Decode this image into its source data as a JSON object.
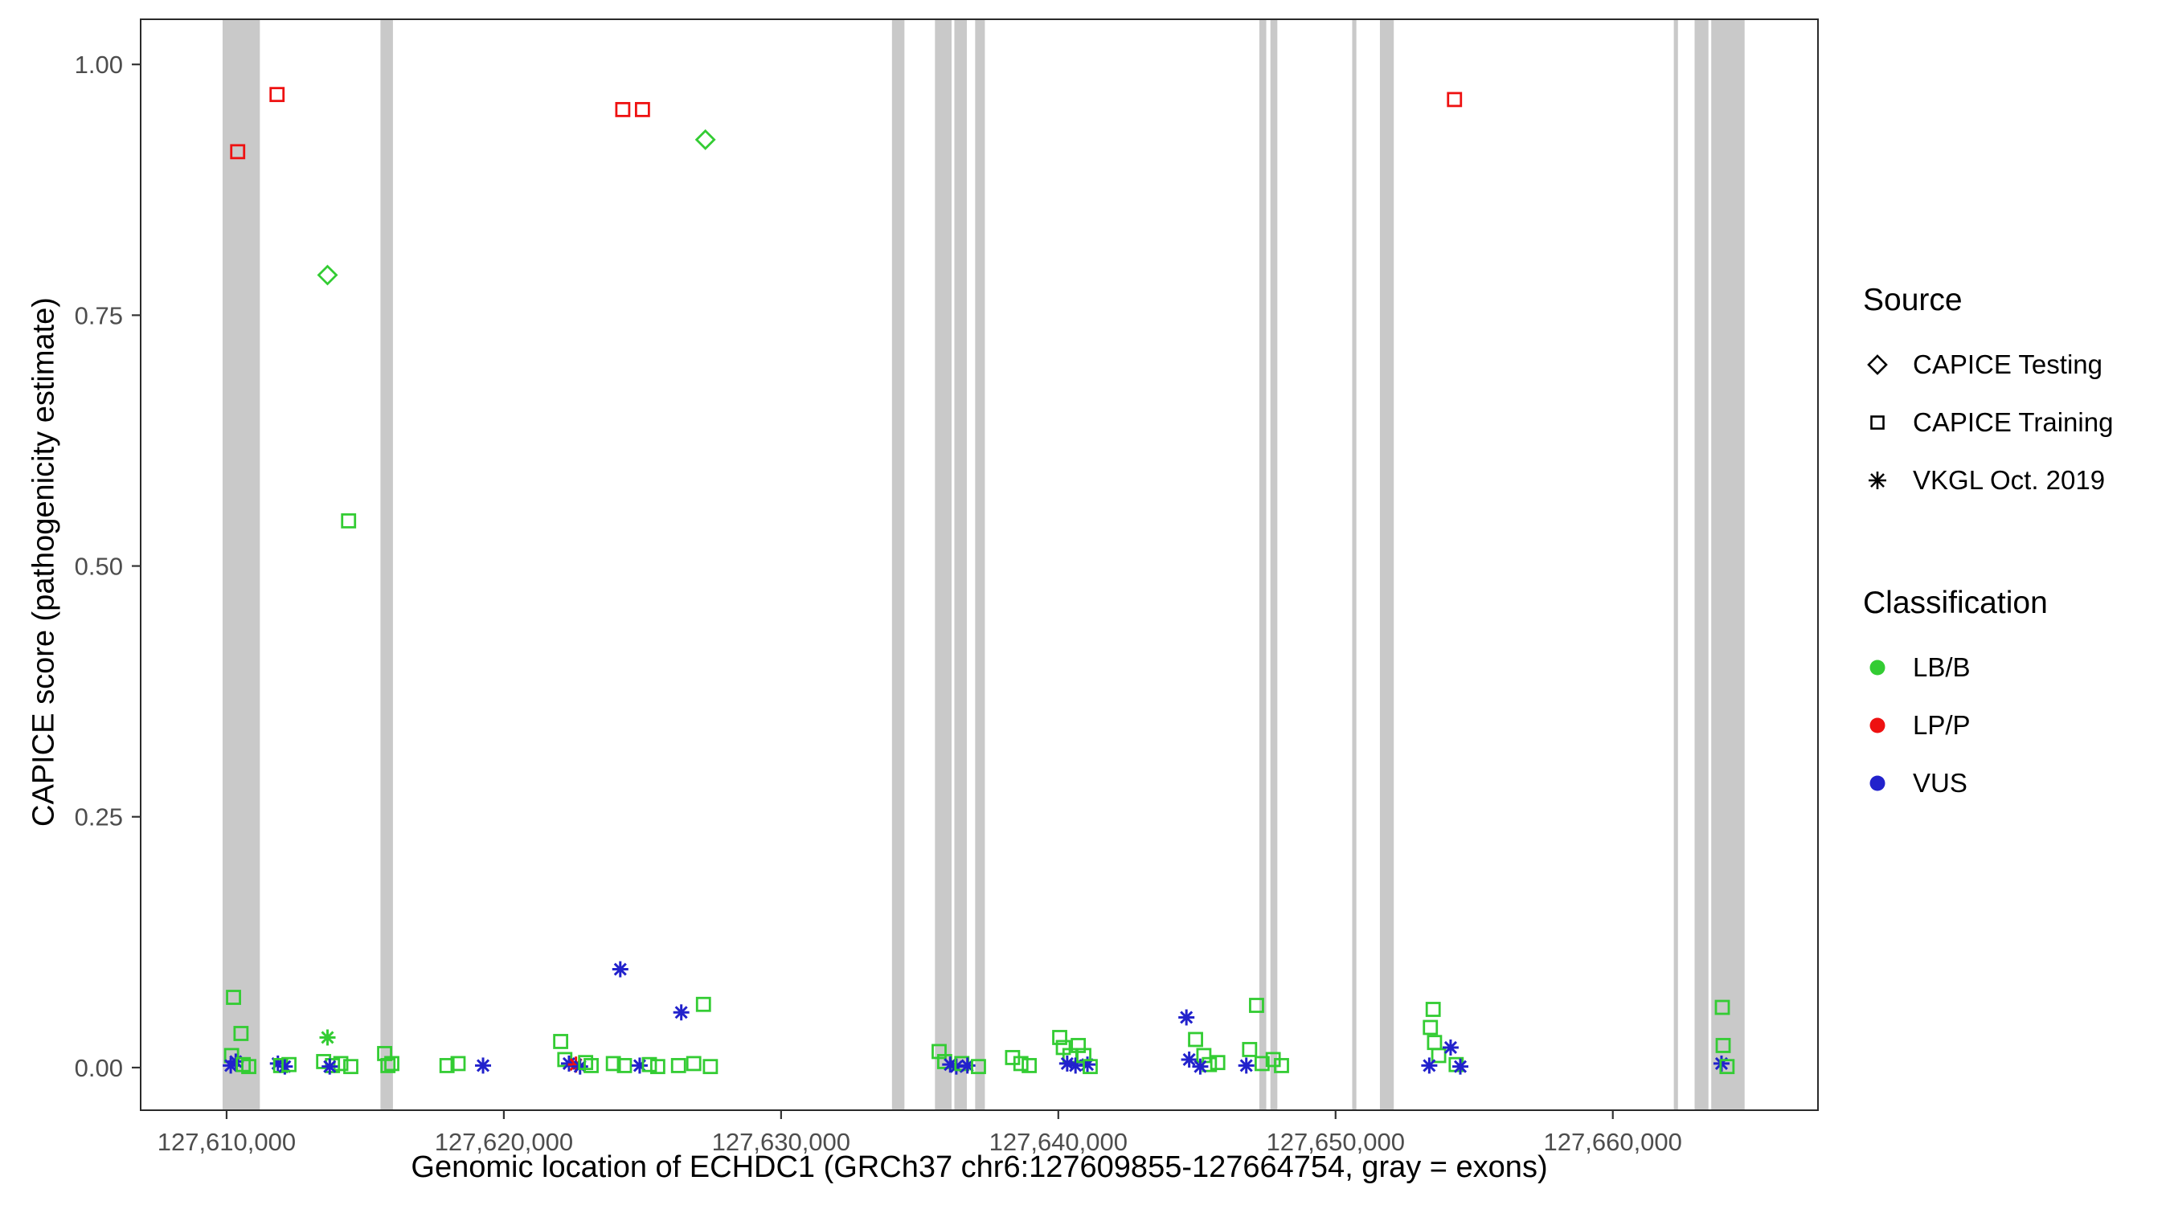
{
  "colors": {
    "LB/B": "#33cc33",
    "LP/P": "#ee1111",
    "VUS": "#2222cc",
    "exon": "#c9c9c9",
    "axis": "#333333"
  },
  "axes": {
    "x_label": "Genomic location of ECHDC1 (GRCh37 chr6:127609855-127664754, gray = exons)",
    "y_label": "CAPICE score (pathogenicity estimate)",
    "x_domain": [
      127606900,
      127667400
    ],
    "y_domain": [
      -0.0425,
      1.045
    ],
    "x_ticks": [
      127610000,
      127620000,
      127630000,
      127640000,
      127650000,
      127660000
    ],
    "x_tick_labels": [
      "127,610,000",
      "127,620,000",
      "127,630,000",
      "127,640,000",
      "127,650,000",
      "127,660,000"
    ],
    "y_ticks": [
      0,
      0.25,
      0.5,
      0.75,
      1
    ],
    "y_tick_labels": [
      "0.00",
      "0.25",
      "0.50",
      "0.75",
      "1.00"
    ]
  },
  "legend": {
    "source_title": "Source",
    "source_items": [
      {
        "label": "CAPICE Testing",
        "shape": "diamond"
      },
      {
        "label": "CAPICE Training",
        "shape": "square"
      },
      {
        "label": "VKGL Oct. 2019",
        "shape": "asterisk"
      }
    ],
    "classification_title": "Classification",
    "classification_items": [
      {
        "label": "LB/B",
        "color": "#33cc33"
      },
      {
        "label": "LP/P",
        "color": "#ee1111"
      },
      {
        "label": "VUS",
        "color": "#2222cc"
      }
    ]
  },
  "chart_data": {
    "type": "scatter",
    "title": "",
    "xlabel": "Genomic location of ECHDC1 (GRCh37 chr6:127609855-127664754, gray = exons)",
    "ylabel": "CAPICE score (pathogenicity estimate)",
    "grid": false,
    "legend_position": "right",
    "exons": [
      [
        127609855,
        127611200
      ],
      [
        127615550,
        127616000
      ],
      [
        127634000,
        127634450
      ],
      [
        127635550,
        127636150
      ],
      [
        127636250,
        127636700
      ],
      [
        127637000,
        127637350
      ],
      [
        127647250,
        127647500
      ],
      [
        127647650,
        127647900
      ],
      [
        127650600,
        127650750
      ],
      [
        127651600,
        127652100
      ],
      [
        127662200,
        127662350
      ],
      [
        127662950,
        127663450
      ],
      [
        127663550,
        127664754
      ]
    ],
    "points": [
      {
        "x": 127610400,
        "y": 0.913,
        "shape": "square",
        "source": "CAPICE Training",
        "class": "LP/P"
      },
      {
        "x": 127611820,
        "y": 0.97,
        "shape": "square",
        "source": "CAPICE Training",
        "class": "LP/P"
      },
      {
        "x": 127624290,
        "y": 0.955,
        "shape": "square",
        "source": "CAPICE Training",
        "class": "LP/P"
      },
      {
        "x": 127625000,
        "y": 0.955,
        "shape": "square",
        "source": "CAPICE Training",
        "class": "LP/P"
      },
      {
        "x": 127654290,
        "y": 0.965,
        "shape": "square",
        "source": "CAPICE Training",
        "class": "LP/P"
      },
      {
        "x": 127627270,
        "y": 0.925,
        "shape": "diamond",
        "source": "CAPICE Testing",
        "class": "LB/B"
      },
      {
        "x": 127613640,
        "y": 0.79,
        "shape": "diamond",
        "source": "CAPICE Testing",
        "class": "LB/B"
      },
      {
        "x": 127614400,
        "y": 0.545,
        "shape": "square",
        "source": "CAPICE Training",
        "class": "LB/B"
      },
      {
        "x": 127610250,
        "y": 0.07,
        "shape": "square",
        "source": "CAPICE Training",
        "class": "LB/B"
      },
      {
        "x": 127610520,
        "y": 0.034,
        "shape": "square",
        "source": "CAPICE Training",
        "class": "LB/B"
      },
      {
        "x": 127610180,
        "y": 0.012,
        "shape": "square",
        "source": "CAPICE Training",
        "class": "LB/B"
      },
      {
        "x": 127610330,
        "y": 0.006,
        "shape": "asterisk",
        "source": "VKGL Oct. 2019",
        "class": "VUS"
      },
      {
        "x": 127610150,
        "y": 0.002,
        "shape": "asterisk",
        "source": "VKGL Oct. 2019",
        "class": "VUS"
      },
      {
        "x": 127610600,
        "y": 0.003,
        "shape": "square",
        "source": "CAPICE Training",
        "class": "LB/B"
      },
      {
        "x": 127610800,
        "y": 0.001,
        "shape": "square",
        "source": "CAPICE Training",
        "class": "LB/B"
      },
      {
        "x": 127611850,
        "y": 0.004,
        "shape": "asterisk",
        "source": "VKGL Oct. 2019",
        "class": "VUS"
      },
      {
        "x": 127611950,
        "y": 0.002,
        "shape": "square",
        "source": "CAPICE Training",
        "class": "LB/B"
      },
      {
        "x": 127612100,
        "y": 0.001,
        "shape": "asterisk",
        "source": "VKGL Oct. 2019",
        "class": "VUS"
      },
      {
        "x": 127612250,
        "y": 0.003,
        "shape": "square",
        "source": "CAPICE Training",
        "class": "LB/B"
      },
      {
        "x": 127613640,
        "y": 0.03,
        "shape": "asterisk",
        "source": "VKGL Oct. 2019",
        "class": "LB/B"
      },
      {
        "x": 127613500,
        "y": 0.006,
        "shape": "square",
        "source": "CAPICE Training",
        "class": "LB/B"
      },
      {
        "x": 127613820,
        "y": 0.002,
        "shape": "square",
        "source": "CAPICE Training",
        "class": "LB/B"
      },
      {
        "x": 127614120,
        "y": 0.004,
        "shape": "square",
        "source": "CAPICE Training",
        "class": "LB/B"
      },
      {
        "x": 127614480,
        "y": 0.001,
        "shape": "square",
        "source": "CAPICE Training",
        "class": "LB/B"
      },
      {
        "x": 127613720,
        "y": 0.001,
        "shape": "asterisk",
        "source": "VKGL Oct. 2019",
        "class": "VUS"
      },
      {
        "x": 127615700,
        "y": 0.014,
        "shape": "square",
        "source": "CAPICE Training",
        "class": "LB/B"
      },
      {
        "x": 127615820,
        "y": 0.002,
        "shape": "square",
        "source": "CAPICE Training",
        "class": "LB/B"
      },
      {
        "x": 127615960,
        "y": 0.004,
        "shape": "square",
        "source": "CAPICE Training",
        "class": "LB/B"
      },
      {
        "x": 127617950,
        "y": 0.002,
        "shape": "square",
        "source": "CAPICE Training",
        "class": "LB/B"
      },
      {
        "x": 127618350,
        "y": 0.004,
        "shape": "square",
        "source": "CAPICE Training",
        "class": "LB/B"
      },
      {
        "x": 127619250,
        "y": 0.002,
        "shape": "asterisk",
        "source": "VKGL Oct. 2019",
        "class": "VUS"
      },
      {
        "x": 127622050,
        "y": 0.026,
        "shape": "square",
        "source": "CAPICE Training",
        "class": "LB/B"
      },
      {
        "x": 127622200,
        "y": 0.008,
        "shape": "square",
        "source": "CAPICE Training",
        "class": "LB/B"
      },
      {
        "x": 127622350,
        "y": 0.004,
        "shape": "asterisk",
        "source": "VKGL Oct. 2019",
        "class": "VUS"
      },
      {
        "x": 127622600,
        "y": 0.003,
        "shape": "asterisk",
        "source": "VKGL Oct. 2019",
        "class": "LP/P"
      },
      {
        "x": 127622750,
        "y": 0.001,
        "shape": "asterisk",
        "source": "VKGL Oct. 2019",
        "class": "VUS"
      },
      {
        "x": 127622950,
        "y": 0.005,
        "shape": "square",
        "source": "CAPICE Training",
        "class": "LB/B"
      },
      {
        "x": 127623150,
        "y": 0.002,
        "shape": "square",
        "source": "CAPICE Training",
        "class": "LB/B"
      },
      {
        "x": 127624200,
        "y": 0.098,
        "shape": "asterisk",
        "source": "VKGL Oct. 2019",
        "class": "VUS"
      },
      {
        "x": 127623950,
        "y": 0.004,
        "shape": "square",
        "source": "CAPICE Training",
        "class": "LB/B"
      },
      {
        "x": 127624350,
        "y": 0.002,
        "shape": "square",
        "source": "CAPICE Training",
        "class": "LB/B"
      },
      {
        "x": 127624900,
        "y": 0.002,
        "shape": "asterisk",
        "source": "VKGL Oct. 2019",
        "class": "VUS"
      },
      {
        "x": 127625250,
        "y": 0.003,
        "shape": "square",
        "source": "CAPICE Training",
        "class": "LB/B"
      },
      {
        "x": 127625550,
        "y": 0.001,
        "shape": "square",
        "source": "CAPICE Training",
        "class": "LB/B"
      },
      {
        "x": 127626400,
        "y": 0.055,
        "shape": "asterisk",
        "source": "VKGL Oct. 2019",
        "class": "VUS"
      },
      {
        "x": 127627200,
        "y": 0.063,
        "shape": "square",
        "source": "CAPICE Training",
        "class": "LB/B"
      },
      {
        "x": 127626300,
        "y": 0.002,
        "shape": "square",
        "source": "CAPICE Training",
        "class": "LB/B"
      },
      {
        "x": 127626850,
        "y": 0.004,
        "shape": "square",
        "source": "CAPICE Training",
        "class": "LB/B"
      },
      {
        "x": 127627450,
        "y": 0.001,
        "shape": "square",
        "source": "CAPICE Training",
        "class": "LB/B"
      },
      {
        "x": 127635700,
        "y": 0.016,
        "shape": "square",
        "source": "CAPICE Training",
        "class": "LB/B"
      },
      {
        "x": 127635900,
        "y": 0.006,
        "shape": "square",
        "source": "CAPICE Training",
        "class": "LB/B"
      },
      {
        "x": 127636100,
        "y": 0.003,
        "shape": "asterisk",
        "source": "VKGL Oct. 2019",
        "class": "VUS"
      },
      {
        "x": 127636320,
        "y": 0.001,
        "shape": "asterisk",
        "source": "VKGL Oct. 2019",
        "class": "VUS"
      },
      {
        "x": 127636520,
        "y": 0.004,
        "shape": "square",
        "source": "CAPICE Training",
        "class": "LB/B"
      },
      {
        "x": 127636720,
        "y": 0.002,
        "shape": "asterisk",
        "source": "VKGL Oct. 2019",
        "class": "VUS"
      },
      {
        "x": 127637120,
        "y": 0.001,
        "shape": "square",
        "source": "CAPICE Training",
        "class": "LB/B"
      },
      {
        "x": 127638350,
        "y": 0.01,
        "shape": "square",
        "source": "CAPICE Training",
        "class": "LB/B"
      },
      {
        "x": 127638650,
        "y": 0.004,
        "shape": "square",
        "source": "CAPICE Training",
        "class": "LB/B"
      },
      {
        "x": 127638950,
        "y": 0.002,
        "shape": "square",
        "source": "CAPICE Training",
        "class": "LB/B"
      },
      {
        "x": 127640050,
        "y": 0.03,
        "shape": "square",
        "source": "CAPICE Training",
        "class": "LB/B"
      },
      {
        "x": 127640180,
        "y": 0.02,
        "shape": "square",
        "source": "CAPICE Training",
        "class": "LB/B"
      },
      {
        "x": 127640420,
        "y": 0.012,
        "shape": "square",
        "source": "CAPICE Training",
        "class": "LB/B"
      },
      {
        "x": 127640720,
        "y": 0.022,
        "shape": "square",
        "source": "CAPICE Training",
        "class": "LB/B"
      },
      {
        "x": 127640320,
        "y": 0.004,
        "shape": "asterisk",
        "source": "VKGL Oct. 2019",
        "class": "VUS"
      },
      {
        "x": 127640620,
        "y": 0.002,
        "shape": "asterisk",
        "source": "VKGL Oct. 2019",
        "class": "VUS"
      },
      {
        "x": 127640920,
        "y": 0.012,
        "shape": "square",
        "source": "CAPICE Training",
        "class": "LB/B"
      },
      {
        "x": 127641050,
        "y": 0.003,
        "shape": "asterisk",
        "source": "VKGL Oct. 2019",
        "class": "VUS"
      },
      {
        "x": 127641150,
        "y": 0.001,
        "shape": "square",
        "source": "CAPICE Training",
        "class": "LB/B"
      },
      {
        "x": 127644620,
        "y": 0.05,
        "shape": "asterisk",
        "source": "VKGL Oct. 2019",
        "class": "VUS"
      },
      {
        "x": 127644950,
        "y": 0.028,
        "shape": "square",
        "source": "CAPICE Training",
        "class": "LB/B"
      },
      {
        "x": 127644720,
        "y": 0.008,
        "shape": "asterisk",
        "source": "VKGL Oct. 2019",
        "class": "VUS"
      },
      {
        "x": 127645250,
        "y": 0.012,
        "shape": "square",
        "source": "CAPICE Training",
        "class": "LB/B"
      },
      {
        "x": 127645450,
        "y": 0.003,
        "shape": "square",
        "source": "CAPICE Training",
        "class": "LB/B"
      },
      {
        "x": 127645120,
        "y": 0.001,
        "shape": "asterisk",
        "source": "VKGL Oct. 2019",
        "class": "VUS"
      },
      {
        "x": 127645750,
        "y": 0.005,
        "shape": "square",
        "source": "CAPICE Training",
        "class": "LB/B"
      },
      {
        "x": 127647150,
        "y": 0.062,
        "shape": "square",
        "source": "CAPICE Training",
        "class": "LB/B"
      },
      {
        "x": 127646900,
        "y": 0.018,
        "shape": "square",
        "source": "CAPICE Training",
        "class": "LB/B"
      },
      {
        "x": 127646780,
        "y": 0.002,
        "shape": "asterisk",
        "source": "VKGL Oct. 2019",
        "class": "VUS"
      },
      {
        "x": 127647350,
        "y": 0.004,
        "shape": "square",
        "source": "CAPICE Training",
        "class": "LB/B"
      },
      {
        "x": 127647750,
        "y": 0.008,
        "shape": "square",
        "source": "CAPICE Training",
        "class": "LB/B"
      },
      {
        "x": 127648050,
        "y": 0.002,
        "shape": "square",
        "source": "CAPICE Training",
        "class": "LB/B"
      },
      {
        "x": 127653520,
        "y": 0.058,
        "shape": "square",
        "source": "CAPICE Training",
        "class": "LB/B"
      },
      {
        "x": 127653420,
        "y": 0.04,
        "shape": "square",
        "source": "CAPICE Training",
        "class": "LB/B"
      },
      {
        "x": 127653570,
        "y": 0.025,
        "shape": "square",
        "source": "CAPICE Training",
        "class": "LB/B"
      },
      {
        "x": 127653720,
        "y": 0.012,
        "shape": "square",
        "source": "CAPICE Training",
        "class": "LB/B"
      },
      {
        "x": 127653380,
        "y": 0.002,
        "shape": "asterisk",
        "source": "VKGL Oct. 2019",
        "class": "VUS"
      },
      {
        "x": 127654150,
        "y": 0.02,
        "shape": "asterisk",
        "source": "VKGL Oct. 2019",
        "class": "VUS"
      },
      {
        "x": 127654350,
        "y": 0.003,
        "shape": "square",
        "source": "CAPICE Training",
        "class": "LB/B"
      },
      {
        "x": 127654500,
        "y": 0.001,
        "shape": "asterisk",
        "source": "VKGL Oct. 2019",
        "class": "VUS"
      },
      {
        "x": 127663950,
        "y": 0.06,
        "shape": "square",
        "source": "CAPICE Training",
        "class": "LB/B"
      },
      {
        "x": 127663980,
        "y": 0.022,
        "shape": "square",
        "source": "CAPICE Training",
        "class": "LB/B"
      },
      {
        "x": 127663920,
        "y": 0.004,
        "shape": "asterisk",
        "source": "VKGL Oct. 2019",
        "class": "VUS"
      },
      {
        "x": 127664120,
        "y": 0.001,
        "shape": "square",
        "source": "CAPICE Training",
        "class": "LB/B"
      }
    ]
  }
}
